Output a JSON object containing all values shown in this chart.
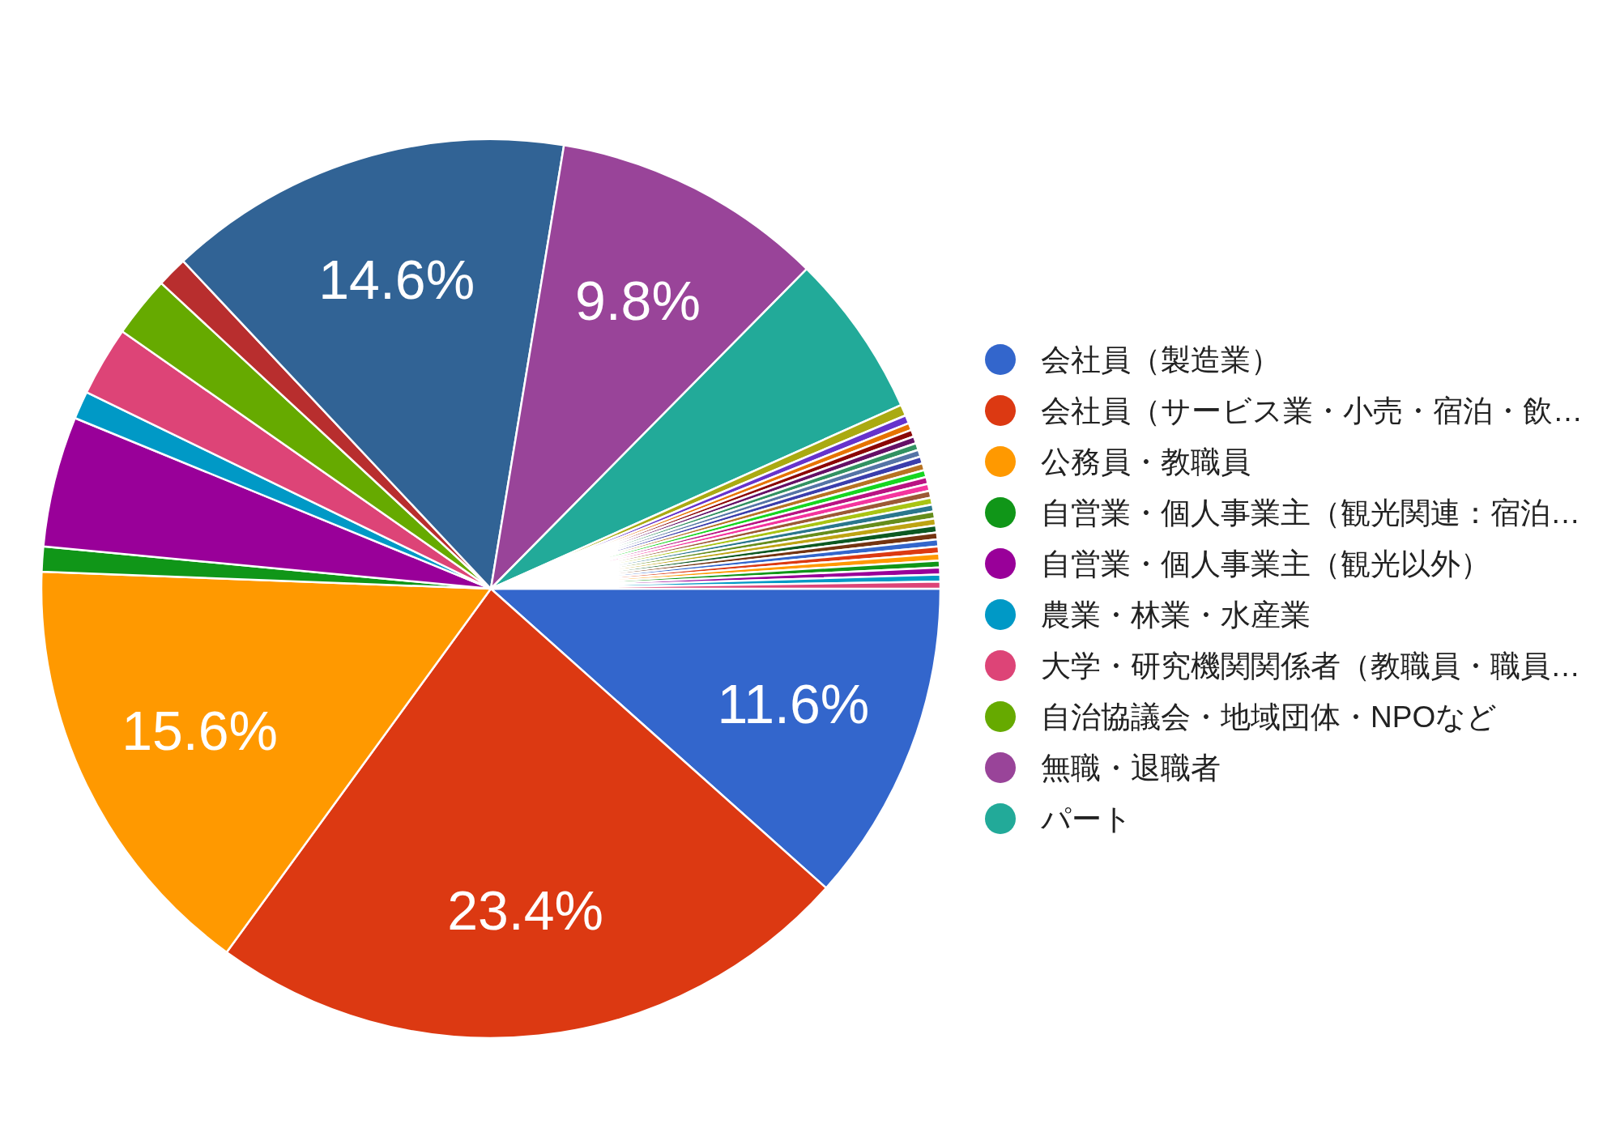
{
  "chart_data": {
    "type": "pie",
    "categories": [
      "会社員（製造業）",
      "会社員（サービス業・小売・宿泊・飲…",
      "公務員・教職員",
      "自営業・個人事業主（観光関連：宿泊…",
      "自営業・個人事業主（観光以外）",
      "農業・林業・水産業",
      "大学・研究機関関係者（教職員・職員…",
      "自治協議会・地域団体・NPOなど",
      null,
      null,
      "無職・退職者",
      "パート",
      null,
      null,
      null,
      null,
      null,
      null,
      null,
      null,
      null,
      null,
      null,
      null,
      null,
      null,
      null,
      null,
      null,
      null,
      null,
      null,
      null,
      null,
      null,
      null,
      null,
      null
    ],
    "values": [
      11.6,
      23.4,
      15.6,
      0.9,
      4.7,
      1.0,
      2.5,
      2.2,
      1.1,
      14.6,
      9.8,
      5.9,
      0.4,
      0.3,
      0.25,
      0.25,
      0.25,
      0.25,
      0.25,
      0.25,
      0.25,
      0.25,
      0.25,
      0.25,
      0.25,
      0.25,
      0.25,
      0.25,
      0.25,
      0.25,
      0.25,
      0.25,
      0.25,
      0.25,
      0.25,
      0.25,
      0.25,
      0.25
    ],
    "colors": [
      "#3366cc",
      "#dc3912",
      "#ff9900",
      "#109618",
      "#990099",
      "#0099c6",
      "#dd4477",
      "#66aa00",
      "#b82e2e",
      "#316395",
      "#994499",
      "#22aa99",
      "#aaaa11",
      "#6633cc",
      "#e67300",
      "#8b0707",
      "#651067",
      "#329262",
      "#5574a6",
      "#3b3eac",
      "#b77322",
      "#16d620",
      "#b91383",
      "#f4359e",
      "#9c5935",
      "#a9c413",
      "#2a778d",
      "#668d1c",
      "#bea413",
      "#0c5922",
      "#743411",
      "#3366cc",
      "#dc3912",
      "#ff9900",
      "#109618",
      "#990099",
      "#0099c6",
      "#dd4477"
    ],
    "value_labels": [
      "11.6%",
      "23.4%",
      "15.6%",
      null,
      null,
      null,
      null,
      null,
      null,
      "14.6%",
      "9.8%",
      null,
      null,
      null,
      null,
      null,
      null,
      null,
      null,
      null,
      null,
      null,
      null,
      null,
      null,
      null,
      null,
      null,
      null,
      null,
      null,
      null,
      null,
      null,
      null,
      null,
      null,
      null
    ],
    "legend": "right"
  }
}
